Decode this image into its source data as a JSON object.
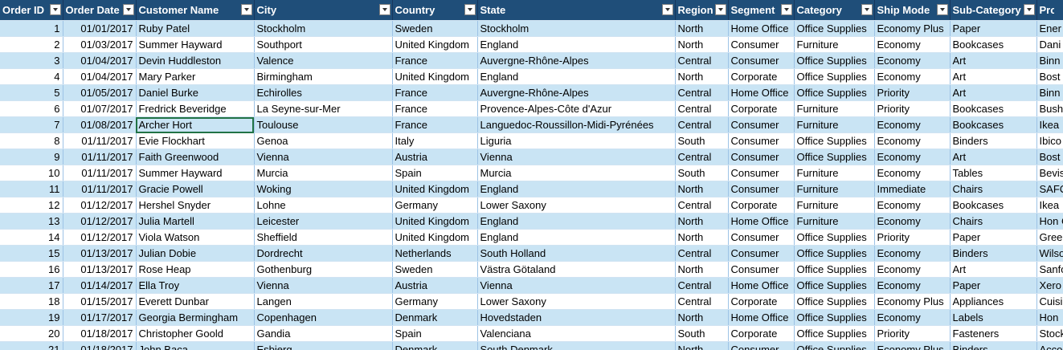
{
  "headers": [
    "Order ID",
    "Order Date",
    "Customer Name",
    "City",
    "Country",
    "State",
    "Region",
    "Segment",
    "Category",
    "Ship Mode",
    "Sub-Category",
    "Prod"
  ],
  "rows": [
    [
      "1",
      "01/01/2017",
      "Ruby Patel",
      "Stockholm",
      "Sweden",
      "Stockholm",
      "North",
      "Home Office",
      "Office Supplies",
      "Economy Plus",
      "Paper",
      "Ener"
    ],
    [
      "2",
      "01/03/2017",
      "Summer Hayward",
      "Southport",
      "United Kingdom",
      "England",
      "North",
      "Consumer",
      "Furniture",
      "Economy",
      "Bookcases",
      "Dani"
    ],
    [
      "3",
      "01/04/2017",
      "Devin Huddleston",
      "Valence",
      "France",
      "Auvergne-Rhône-Alpes",
      "Central",
      "Consumer",
      "Office Supplies",
      "Economy",
      "Art",
      "Binn"
    ],
    [
      "4",
      "01/04/2017",
      "Mary Parker",
      "Birmingham",
      "United Kingdom",
      "England",
      "North",
      "Corporate",
      "Office Supplies",
      "Economy",
      "Art",
      "Bost"
    ],
    [
      "5",
      "01/05/2017",
      "Daniel Burke",
      "Echirolles",
      "France",
      "Auvergne-Rhône-Alpes",
      "Central",
      "Home Office",
      "Office Supplies",
      "Priority",
      "Art",
      "Binn"
    ],
    [
      "6",
      "01/07/2017",
      "Fredrick Beveridge",
      "La Seyne-sur-Mer",
      "France",
      "Provence-Alpes-Côte d'Azur",
      "Central",
      "Corporate",
      "Furniture",
      "Priority",
      "Bookcases",
      "Bush"
    ],
    [
      "7",
      "01/08/2017",
      "Archer Hort",
      "Toulouse",
      "France",
      "Languedoc-Roussillon-Midi-Pyrénées",
      "Central",
      "Consumer",
      "Furniture",
      "Economy",
      "Bookcases",
      "Ikea"
    ],
    [
      "8",
      "01/11/2017",
      "Evie Flockhart",
      "Genoa",
      "Italy",
      "Liguria",
      "South",
      "Consumer",
      "Office Supplies",
      "Economy",
      "Binders",
      "Ibico"
    ],
    [
      "9",
      "01/11/2017",
      "Faith Greenwood",
      "Vienna",
      "Austria",
      "Vienna",
      "Central",
      "Consumer",
      "Office Supplies",
      "Economy",
      "Art",
      "Bost"
    ],
    [
      "10",
      "01/11/2017",
      "Summer Hayward",
      "Murcia",
      "Spain",
      "Murcia",
      "South",
      "Consumer",
      "Furniture",
      "Economy",
      "Tables",
      "Bevis"
    ],
    [
      "11",
      "01/11/2017",
      "Gracie Powell",
      "Woking",
      "United Kingdom",
      "England",
      "North",
      "Consumer",
      "Furniture",
      "Immediate",
      "Chairs",
      "SAFC"
    ],
    [
      "12",
      "01/12/2017",
      "Hershel Snyder",
      "Lohne",
      "Germany",
      "Lower Saxony",
      "Central",
      "Corporate",
      "Furniture",
      "Economy",
      "Bookcases",
      "Ikea"
    ],
    [
      "13",
      "01/12/2017",
      "Julia Martell",
      "Leicester",
      "United Kingdom",
      "England",
      "North",
      "Home Office",
      "Furniture",
      "Economy",
      "Chairs",
      "Hon C"
    ],
    [
      "14",
      "01/12/2017",
      "Viola Watson",
      "Sheffield",
      "United Kingdom",
      "England",
      "North",
      "Consumer",
      "Office Supplies",
      "Priority",
      "Paper",
      "Gree"
    ],
    [
      "15",
      "01/13/2017",
      "Julian Dobie",
      "Dordrecht",
      "Netherlands",
      "South Holland",
      "Central",
      "Consumer",
      "Office Supplies",
      "Economy",
      "Binders",
      "Wilso"
    ],
    [
      "16",
      "01/13/2017",
      "Rose Heap",
      "Gothenburg",
      "Sweden",
      "Västra Götaland",
      "North",
      "Consumer",
      "Office Supplies",
      "Economy",
      "Art",
      "Sanfo"
    ],
    [
      "17",
      "01/14/2017",
      "Ella Troy",
      "Vienna",
      "Austria",
      "Vienna",
      "Central",
      "Home Office",
      "Office Supplies",
      "Economy",
      "Paper",
      "Xero"
    ],
    [
      "18",
      "01/15/2017",
      "Everett Dunbar",
      "Langen",
      "Germany",
      "Lower Saxony",
      "Central",
      "Corporate",
      "Office Supplies",
      "Economy Plus",
      "Appliances",
      "Cuisi"
    ],
    [
      "19",
      "01/17/2017",
      "Georgia Bermingham",
      "Copenhagen",
      "Denmark",
      "Hovedstaden",
      "North",
      "Home Office",
      "Office Supplies",
      "Economy",
      "Labels",
      "Hon"
    ],
    [
      "20",
      "01/18/2017",
      "Christopher Goold",
      "Gandia",
      "Spain",
      "Valenciana",
      "South",
      "Corporate",
      "Office Supplies",
      "Priority",
      "Fasteners",
      "Stock"
    ],
    [
      "21",
      "01/18/2017",
      "John Baca",
      "Esbjerg",
      "Denmark",
      "South Denmark",
      "North",
      "Consumer",
      "Office Supplies",
      "Economy Plus",
      "Binders",
      "Acco"
    ]
  ]
}
